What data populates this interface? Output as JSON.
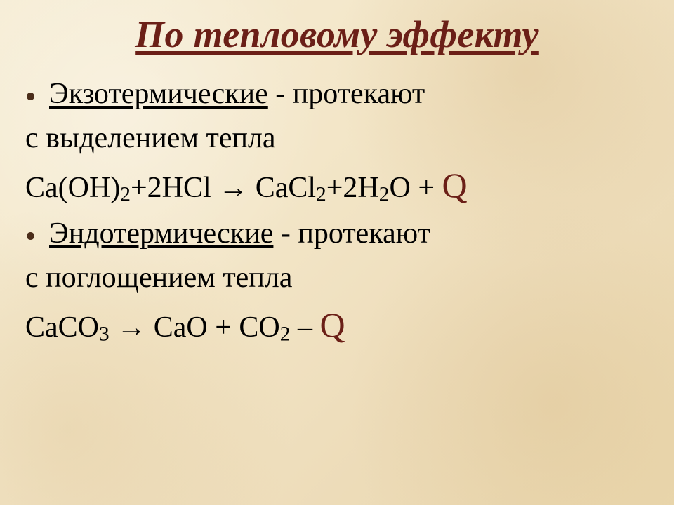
{
  "colors": {
    "title": "#6b1f17",
    "bullet": "#4b2d1a",
    "text": "#000000",
    "q": "#6b1f17",
    "bg_base": "#f3e6c8"
  },
  "fontsize": {
    "title": 54,
    "body": 42,
    "q": 50
  },
  "title": "По тепловому эффекту",
  "items": [
    {
      "term": "Экзотермические",
      "term_suffix": " - протекают",
      "line2": "с выделением тепла",
      "formula": {
        "lhs": "Ca(OH)",
        "lhs_sub": "2",
        "plus1": "+2HCl ",
        "arrow": "→",
        "rhs": " CaCl",
        "rhs_sub": "2",
        "plus2": "+2H",
        "h2o_sub1": "2",
        "o": "O + ",
        "q": "Q",
        "extra_sub": ""
      }
    },
    {
      "term": "Эндотермические",
      "term_suffix": " - протекают",
      "line2": "с поглощением тепла",
      "formula": {
        "lhs": "CaCO",
        "lhs_sub": "3",
        "plus1": " ",
        "arrow": "→",
        "rhs": " CaO + CO",
        "rhs_sub": "2",
        "plus2": " – ",
        "h2o_sub1": "",
        "o": "",
        "q": "Q",
        "extra_sub": ""
      }
    }
  ]
}
